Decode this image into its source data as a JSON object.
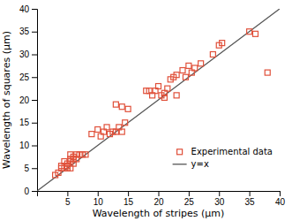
{
  "chart_data": {
    "type": "scatter",
    "xlabel": "Wavelength of stripes (μm)",
    "ylabel": "Wavelength of squares  (μm)",
    "xlim": [
      0,
      40
    ],
    "ylim": [
      0,
      40
    ],
    "xticks": [
      5,
      10,
      15,
      20,
      25,
      30,
      35,
      40
    ],
    "yticks": [
      0,
      5,
      10,
      15,
      20,
      25,
      30,
      35,
      40
    ],
    "grid": false,
    "legend": "lower right",
    "series": [
      {
        "name": "Experimental data",
        "type": "scatter",
        "marker": "square",
        "color": "#e0503a",
        "x": [
          3.0,
          3.5,
          4.0,
          4.0,
          4.5,
          4.5,
          5.0,
          5.0,
          5.0,
          5.5,
          5.5,
          5.5,
          5.5,
          6.0,
          6.0,
          6.0,
          6.5,
          6.5,
          7.0,
          7.5,
          8.0,
          9.0,
          10.0,
          10.5,
          11.0,
          11.5,
          12.0,
          12.5,
          13.0,
          13.0,
          13.5,
          14.0,
          14.0,
          14.5,
          15.0,
          18.0,
          18.5,
          19.0,
          19.5,
          20.0,
          20.5,
          21.0,
          21.0,
          21.5,
          22.0,
          22.5,
          23.0,
          23.0,
          24.0,
          24.5,
          25.0,
          25.5,
          26.0,
          27.0,
          29.0,
          30.0,
          30.5,
          35.0,
          36.0,
          38.0
        ],
        "values": [
          3.5,
          4.0,
          5.5,
          5.0,
          5.0,
          6.5,
          5.0,
          5.5,
          6.0,
          5.0,
          6.5,
          7.0,
          8.0,
          6.0,
          7.0,
          7.5,
          7.0,
          8.0,
          8.0,
          8.0,
          8.0,
          12.5,
          13.5,
          12.0,
          13.0,
          14.0,
          12.5,
          13.0,
          13.0,
          19.0,
          14.0,
          13.0,
          18.5,
          15.0,
          18.0,
          22.0,
          22.0,
          21.0,
          22.0,
          23.0,
          21.0,
          20.5,
          21.5,
          22.5,
          24.5,
          25.0,
          21.0,
          25.5,
          26.5,
          25.0,
          27.5,
          26.0,
          27.0,
          28.0,
          30.0,
          32.0,
          32.5,
          35.0,
          34.5,
          26.0
        ]
      },
      {
        "name": "y=x",
        "type": "line",
        "line_style": "solid",
        "color": "#555555",
        "x": [
          0,
          40
        ],
        "values": [
          0,
          40
        ]
      }
    ]
  }
}
